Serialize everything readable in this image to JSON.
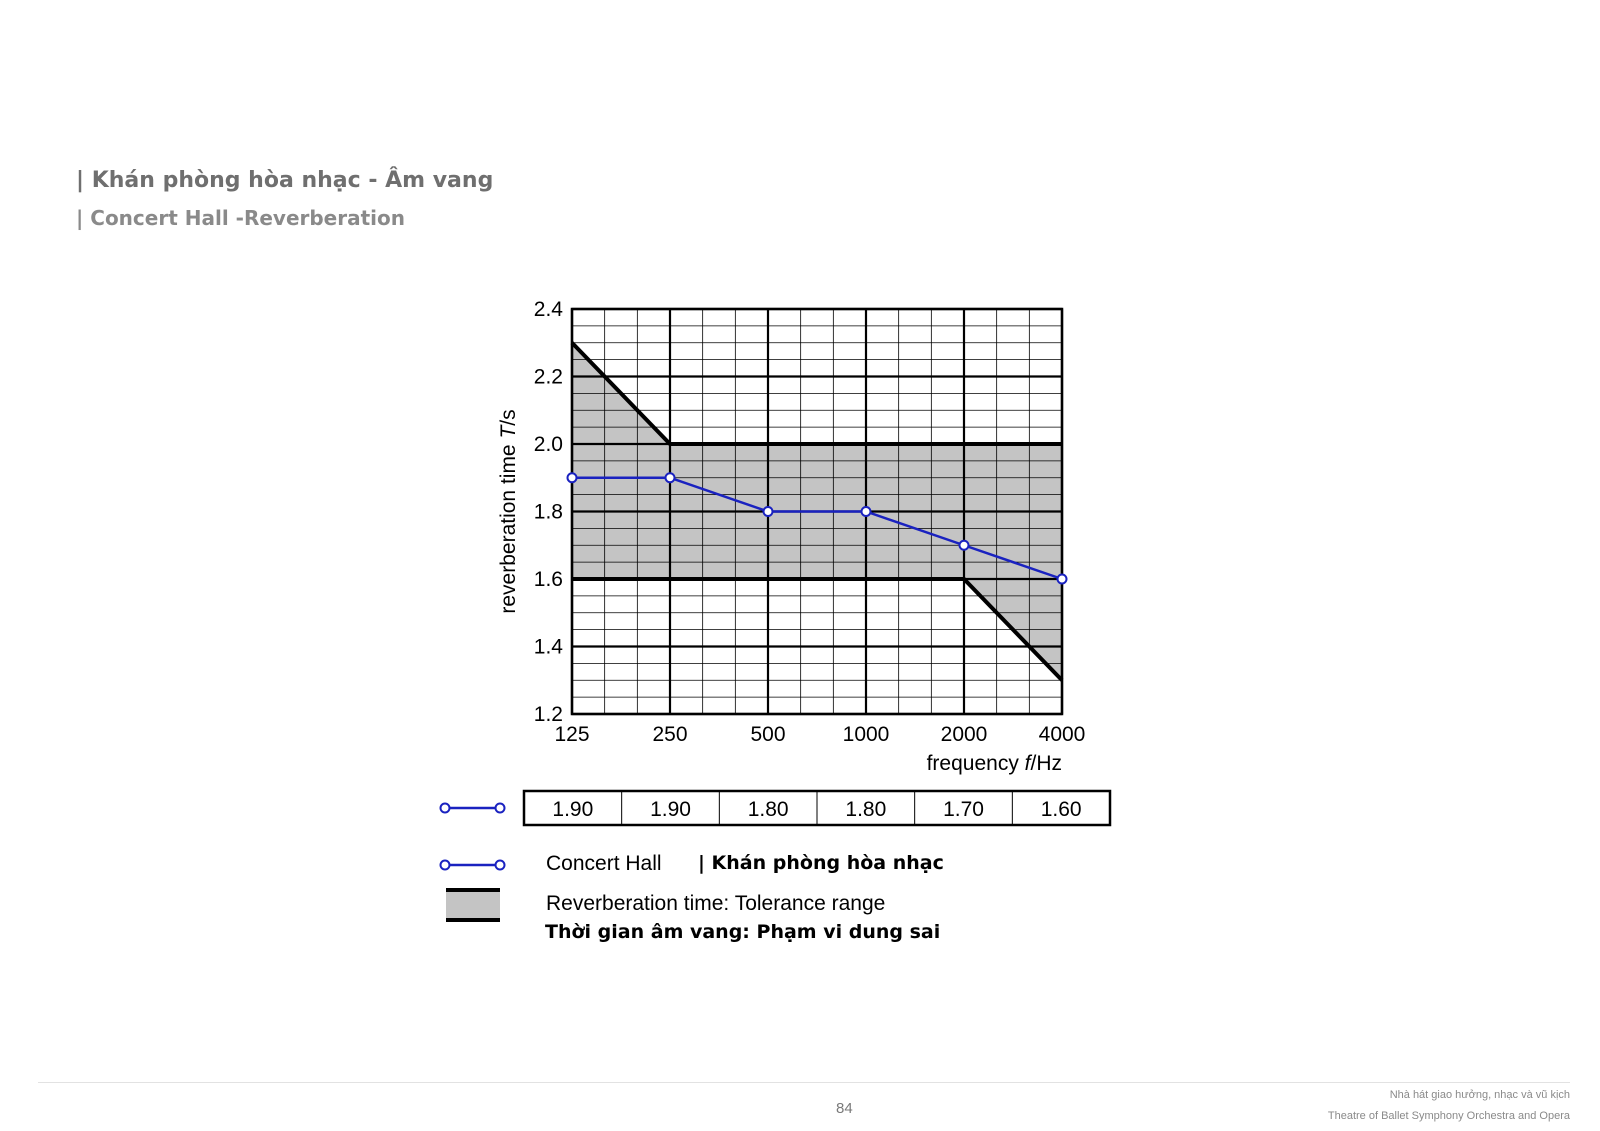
{
  "header": {
    "title": "| Khán phòng hòa nhạc - Âm vang",
    "subtitle": "| Concert Hall -Reverberation"
  },
  "chart_data": {
    "type": "line",
    "x_scale": "log2",
    "categories": [
      "125",
      "250",
      "500",
      "1000",
      "2000",
      "4000"
    ],
    "x": [
      125,
      250,
      500,
      1000,
      2000,
      4000
    ],
    "series": [
      {
        "name": "Concert Hall",
        "values": [
          1.9,
          1.9,
          1.8,
          1.8,
          1.7,
          1.6
        ],
        "color": "#1a22c0"
      }
    ],
    "tolerance_range": {
      "upper": [
        [
          125,
          2.3
        ],
        [
          250,
          2.0
        ],
        [
          4000,
          2.0
        ]
      ],
      "lower": [
        [
          125,
          1.6
        ],
        [
          2000,
          1.6
        ],
        [
          4000,
          1.3
        ]
      ],
      "fill": "#c4c4c4",
      "line_color": "#000000"
    },
    "ylim": [
      1.2,
      2.4
    ],
    "yticks": [
      "1.2",
      "1.4",
      "1.6",
      "1.8",
      "2.0",
      "2.2",
      "2.4"
    ],
    "xlabel_prefix": "frequency ",
    "xlabel_var": "f",
    "xlabel_suffix": "/Hz",
    "ylabel_prefix": "reverberation time ",
    "ylabel_var": "T",
    "ylabel_suffix": "/s",
    "grid": true,
    "table_values": [
      "1.90",
      "1.90",
      "1.80",
      "1.80",
      "1.70",
      "1.60"
    ]
  },
  "legend": {
    "series_label": "Concert Hall",
    "series_label_vi": "| Khán phòng hòa nhạc",
    "tolerance_label": "Reverberation time: Tolerance range",
    "tolerance_label_vi": "Thời gian âm vang: Phạm vi dung sai"
  },
  "footer": {
    "page_number": "84",
    "org_vi": "Nhà hát giao hưởng, nhạc và vũ kịch",
    "org_en": "Theatre of Ballet Symphony Orchestra and Opera"
  }
}
